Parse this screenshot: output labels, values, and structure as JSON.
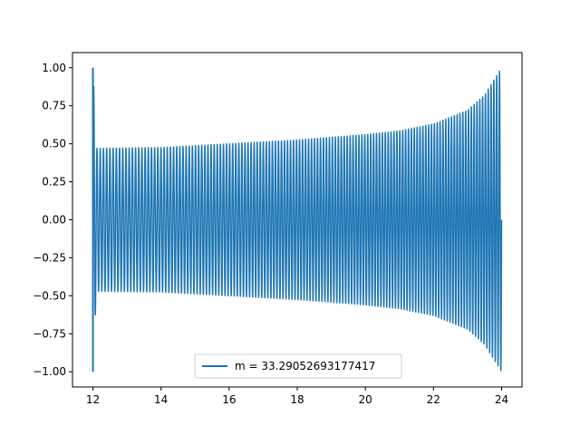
{
  "chart_data": {
    "type": "line",
    "title": "",
    "xlabel": "",
    "ylabel": "",
    "xlim": [
      11.4,
      24.6
    ],
    "ylim": [
      -1.1,
      1.1
    ],
    "x_ticks": [
      12,
      14,
      16,
      18,
      20,
      22,
      24
    ],
    "y_ticks": [
      1.0,
      0.75,
      0.5,
      0.25,
      0.0,
      -0.25,
      -0.5,
      -0.75,
      -1.0
    ],
    "x_tick_labels": [
      "12",
      "14",
      "16",
      "18",
      "20",
      "22",
      "24"
    ],
    "y_tick_labels": [
      "1.00",
      "0.75",
      "0.50",
      "0.25",
      "0.00",
      "−0.25",
      "−0.50",
      "−0.75",
      "−1.00"
    ],
    "grid": false,
    "legend_position": "lower center",
    "series": [
      {
        "name": "m = 33.29052693177417",
        "color": "#1f77b4",
        "x_start": 12,
        "x_end": 24,
        "cycles": 136,
        "envelope": [
          {
            "x": 12.0,
            "amp": 1.0
          },
          {
            "x": 12.1,
            "amp": 0.47
          },
          {
            "x": 14,
            "amp": 0.475
          },
          {
            "x": 16,
            "amp": 0.5
          },
          {
            "x": 18,
            "amp": 0.525
          },
          {
            "x": 20,
            "amp": 0.56
          },
          {
            "x": 21,
            "amp": 0.585
          },
          {
            "x": 22,
            "amp": 0.63
          },
          {
            "x": 23,
            "amp": 0.72
          },
          {
            "x": 23.5,
            "amp": 0.82
          },
          {
            "x": 24,
            "amp": 1.0
          }
        ]
      }
    ]
  }
}
